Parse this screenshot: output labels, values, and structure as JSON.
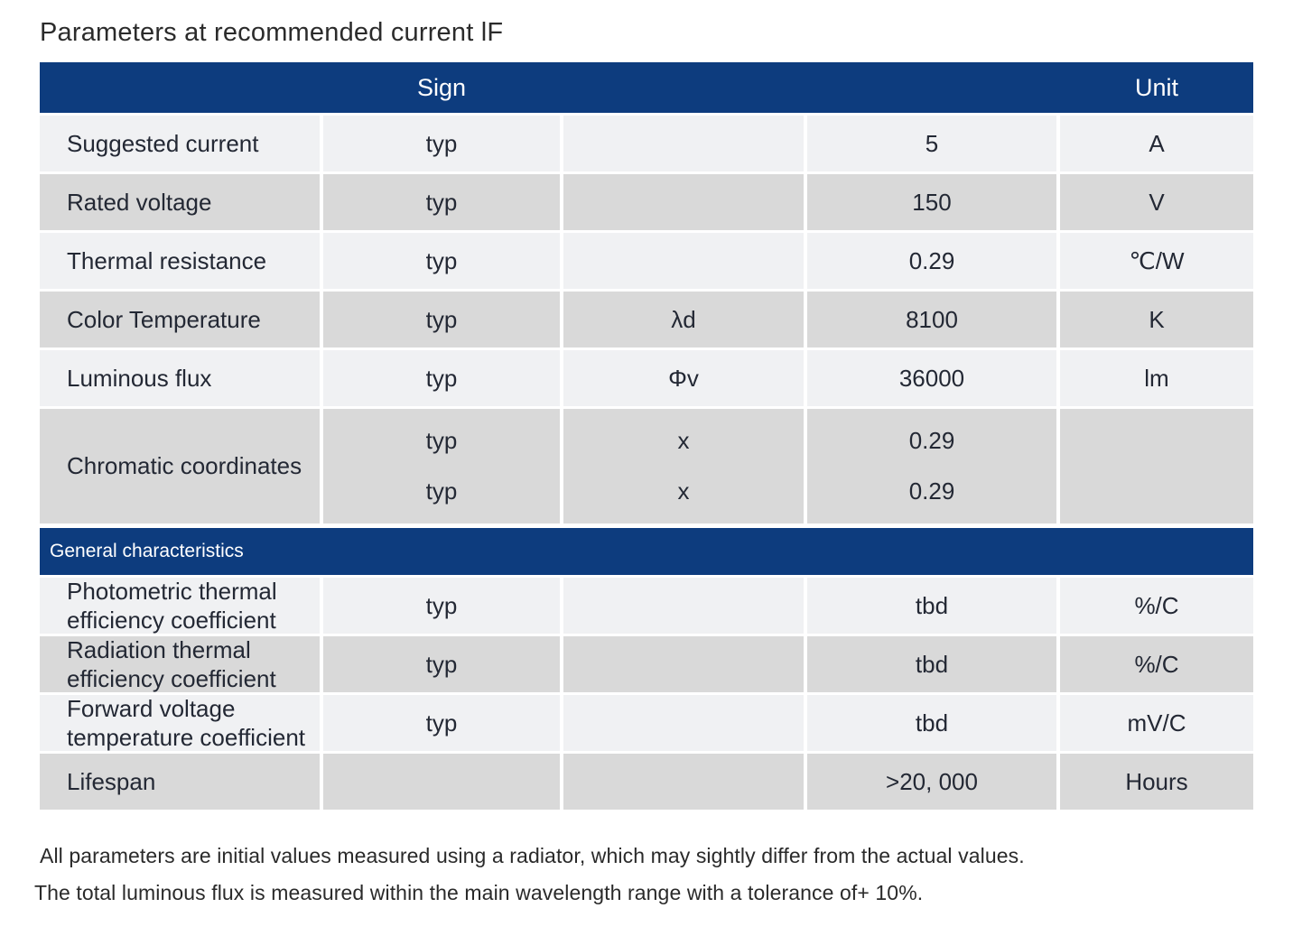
{
  "title": "Parameters at recommended current lF",
  "colors": {
    "header_blue": "#0d3c7e",
    "row_light": "#f0f1f3",
    "row_dark": "#d9d9d9",
    "text": "#232834"
  },
  "table": {
    "header": {
      "sign": "Sign",
      "unit": "Unit"
    },
    "rows": [
      {
        "name": "Suggested current",
        "typ": "typ",
        "symbol": "",
        "value": "5",
        "unit": "A"
      },
      {
        "name": "Rated voltage",
        "typ": "typ",
        "symbol": "",
        "value": "150",
        "unit": "V"
      },
      {
        "name": "Thermal resistance",
        "typ": "typ",
        "symbol": "",
        "value": "0.29",
        "unit": "℃/W"
      },
      {
        "name": "Color Temperature",
        "typ": "typ",
        "symbol": "λd",
        "value": "8100",
        "unit": "K"
      },
      {
        "name": "Luminous flux",
        "typ": "typ",
        "symbol": "Φv",
        "value": "36000",
        "unit": "lm"
      }
    ],
    "chromatic": {
      "name": "Chromatic coordinates",
      "sub": [
        {
          "typ": "typ",
          "symbol": "x",
          "value": "0.29"
        },
        {
          "typ": "typ",
          "symbol": "x",
          "value": "0.29"
        }
      ],
      "unit": ""
    },
    "section2_label": "General characteristics",
    "rows2": [
      {
        "name": "Photometric thermal efficiency coefficient",
        "typ": "typ",
        "symbol": "",
        "value": "tbd",
        "unit": "%/C"
      },
      {
        "name": "Radiation thermal efficiency coefficient",
        "typ": "typ",
        "symbol": "",
        "value": "tbd",
        "unit": "%/C"
      },
      {
        "name": "Forward voltage temperature coefficient",
        "typ": "typ",
        "symbol": "",
        "value": "tbd",
        "unit": "mV/C"
      },
      {
        "name": "Lifespan",
        "typ": "",
        "symbol": "",
        "value": ">20, 000",
        "unit": "Hours"
      }
    ]
  },
  "notes": [
    "All parameters are initial values measured using a radiator, which may sightly differ from the actual values.",
    "The total luminous flux is measured within the main wavelength range with a tolerance of+ 10%."
  ]
}
